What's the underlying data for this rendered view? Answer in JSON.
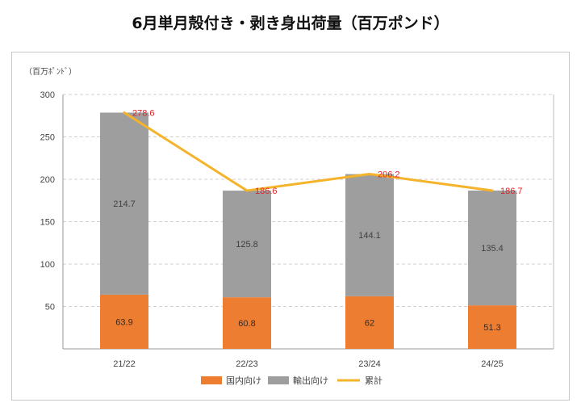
{
  "title": "6月単月殻付き・剥き身出荷量（百万ポンド）",
  "unit_label": "（百万ﾎﾟﾝﾄﾞ）",
  "colors": {
    "domestic": "#ed7d31",
    "export": "#9e9e9e",
    "total": "#f5b32a",
    "total_label": "#e0202a"
  },
  "chart_data": {
    "type": "bar",
    "stacked": true,
    "categories": [
      "21/22",
      "22/23",
      "23/24",
      "24/25"
    ],
    "series": [
      {
        "name": "国内向け",
        "type": "bar",
        "values": [
          63.9,
          60.8,
          62.0,
          51.3
        ]
      },
      {
        "name": "輸出向け",
        "type": "bar",
        "values": [
          214.7,
          125.8,
          144.1,
          135.4
        ]
      },
      {
        "name": "累計",
        "type": "line",
        "values": [
          278.6,
          186.6,
          206.2,
          186.7
        ]
      }
    ],
    "ylim": [
      0,
      300
    ],
    "yticks": [
      50,
      100,
      150,
      200,
      250,
      300
    ],
    "grid": true,
    "legend": "bottom"
  }
}
